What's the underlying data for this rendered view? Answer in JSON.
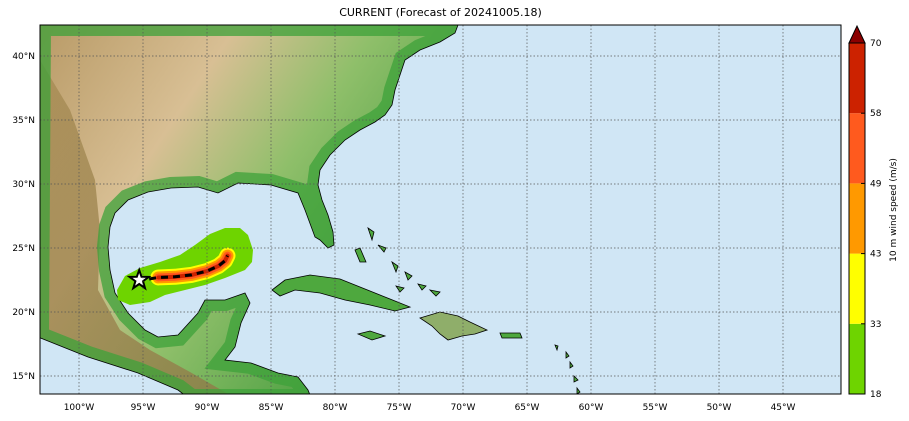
{
  "title": "CURRENT (Forecast of 20241005.18)",
  "map": {
    "lon_range": [
      -103,
      -40.5
    ],
    "lat_range": [
      13.6,
      42.4
    ],
    "lon_ticks": [
      -100,
      -95,
      -90,
      -85,
      -80,
      -75,
      -70,
      -65,
      -60,
      -55,
      -50,
      -45
    ],
    "lon_labels": [
      "100°W",
      "95°W",
      "90°W",
      "85°W",
      "80°W",
      "75°W",
      "70°W",
      "65°W",
      "60°W",
      "55°W",
      "50°W",
      "45°W"
    ],
    "lat_ticks": [
      40,
      35,
      30,
      25,
      20,
      15
    ],
    "lat_labels": [
      "40°N",
      "35°N",
      "30°N",
      "25°N",
      "20°N",
      "15°N"
    ],
    "ocean_color": "#d0e6f5",
    "grid": "dotted",
    "storm": {
      "current_position": {
        "lon": -95.3,
        "lat": 22.5,
        "marker": "star-icon"
      },
      "forecast_track": [
        [
          -93.8,
          22.7
        ],
        [
          -92.5,
          22.75
        ],
        [
          -91.2,
          22.9
        ],
        [
          -90,
          23.2
        ],
        [
          -89.1,
          23.6
        ],
        [
          -88.6,
          24.0
        ],
        [
          -88.4,
          24.4
        ]
      ]
    }
  },
  "colorbar": {
    "label": "10 m wind speed (m/s)",
    "ticks": [
      "18",
      "33",
      "43",
      "49",
      "58",
      "70"
    ],
    "colors": [
      "#6ed400",
      "#ffff00",
      "#ff9900",
      "#ff5a1e",
      "#cc2200"
    ],
    "extend_color": "#8b0000"
  }
}
